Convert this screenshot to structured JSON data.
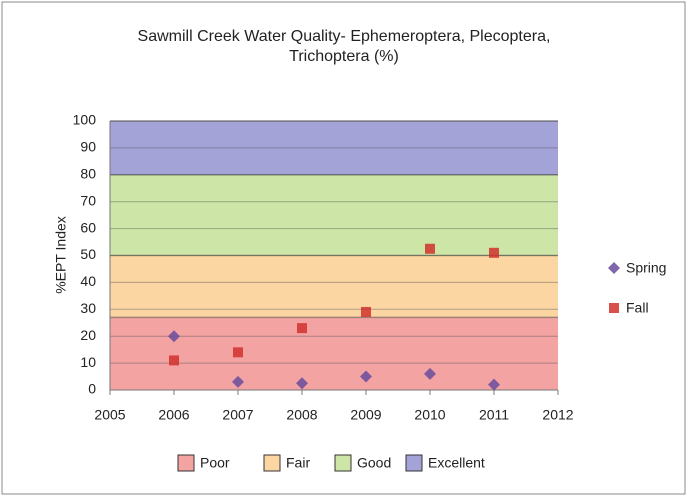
{
  "chart_data": {
    "type": "scatter",
    "title": "Sawmill Creek Water Quality- Ephemeroptera, Plecoptera, Trichoptera (%)",
    "y_label": "%EPT Index",
    "x": [
      2006,
      2007,
      2008,
      2009,
      2010,
      2011
    ],
    "series": [
      {
        "name": "Spring",
        "color": "#6a4c9c",
        "marker": "diamond",
        "values": [
          20,
          3,
          2.5,
          5,
          6,
          2
        ]
      },
      {
        "name": "Fall",
        "color": "#d0312d",
        "marker": "square",
        "values": [
          11,
          14,
          23,
          29,
          52.5,
          51
        ]
      }
    ],
    "bands": [
      {
        "name": "Poor",
        "color": "#f4a3a3",
        "range": [
          0,
          27
        ]
      },
      {
        "name": "Fair",
        "color": "#fcd6a2",
        "range": [
          27,
          50
        ]
      },
      {
        "name": "Good",
        "color": "#cde5a6",
        "range": [
          50,
          80
        ]
      },
      {
        "name": "Excellent",
        "color": "#a3a3d8",
        "range": [
          80,
          100
        ]
      }
    ],
    "xlim": [
      2005,
      2012
    ],
    "xticks": [
      2005,
      2006,
      2007,
      2008,
      2009,
      2010,
      2011,
      2012
    ],
    "ylim": [
      0,
      100
    ],
    "yticks": [
      0,
      10,
      20,
      30,
      40,
      50,
      60,
      70,
      80,
      90,
      100
    ],
    "grid": true,
    "legend": "right"
  }
}
